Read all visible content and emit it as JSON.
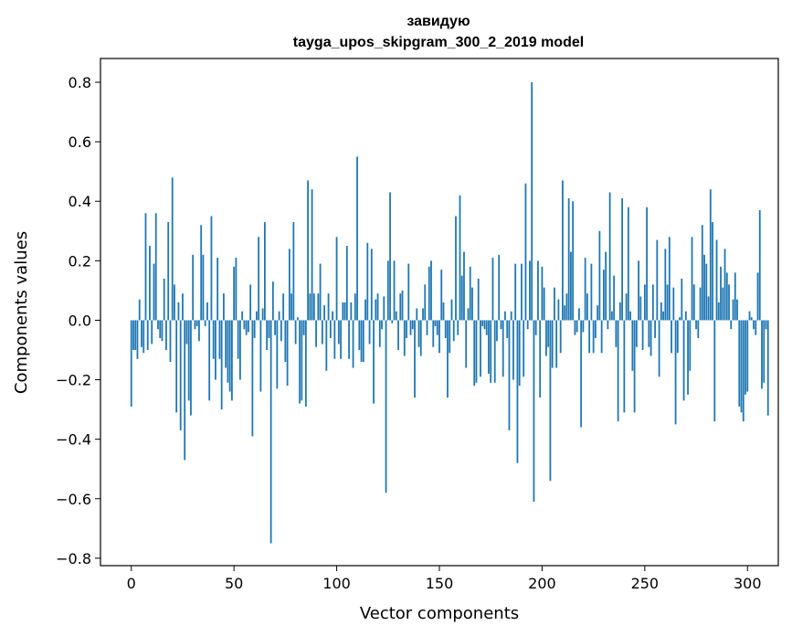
{
  "chart_data": {
    "type": "bar",
    "title_lines": [
      "завидую",
      "tayga_upos_skipgram_300_2_2019 model"
    ],
    "xlabel": "Vector components",
    "ylabel": "Components values",
    "xlim": [
      -15,
      315
    ],
    "ylim": [
      -0.825,
      0.88
    ],
    "xticks": [
      0,
      50,
      100,
      150,
      200,
      250,
      300
    ],
    "xtick_labels": [
      "0",
      "50",
      "100",
      "150",
      "200",
      "250",
      "300"
    ],
    "yticks": [
      -0.8,
      -0.6,
      -0.4,
      -0.2,
      0.0,
      0.2,
      0.4,
      0.6,
      0.8
    ],
    "ytick_labels": [
      "−0.8",
      "−0.6",
      "−0.4",
      "−0.2",
      "0.0",
      "0.2",
      "0.4",
      "0.6",
      "0.8"
    ],
    "grid": false,
    "bar_color": "#1f77b4",
    "values": [
      -0.29,
      -0.1,
      -0.1,
      -0.13,
      0.07,
      -0.09,
      -0.11,
      0.36,
      -0.1,
      0.25,
      -0.08,
      0.19,
      0.36,
      -0.03,
      -0.06,
      -0.07,
      0.14,
      -0.1,
      0.33,
      -0.14,
      0.48,
      0.12,
      -0.31,
      0.06,
      -0.37,
      0.09,
      -0.47,
      -0.08,
      -0.27,
      -0.32,
      0.22,
      -0.03,
      -0.02,
      -0.07,
      0.32,
      0.22,
      -0.02,
      0.06,
      -0.27,
      0.35,
      -0.13,
      -0.2,
      0.21,
      -0.13,
      -0.3,
      0.09,
      -0.16,
      -0.21,
      -0.24,
      -0.27,
      0.18,
      0.21,
      -0.13,
      -0.2,
      0.03,
      -0.03,
      -0.05,
      -0.04,
      0.12,
      -0.39,
      -0.06,
      0.03,
      0.28,
      -0.24,
      0.04,
      0.33,
      -0.1,
      -0.06,
      -0.75,
      0.13,
      -0.05,
      -0.23,
      0.03,
      -0.07,
      0.09,
      -0.14,
      -0.22,
      0.24,
      0.09,
      0.33,
      -0.08,
      0.01,
      -0.28,
      -0.27,
      -0.05,
      -0.29,
      0.47,
      0.09,
      0.44,
      0.09,
      -0.09,
      0.09,
      0.19,
      -0.08,
      0.05,
      -0.17,
      0.09,
      -0.06,
      0.03,
      -0.13,
      0.28,
      -0.08,
      -0.13,
      0.06,
      0.06,
      0.25,
      -0.13,
      0.06,
      -0.16,
      0.09,
      0.55,
      -0.1,
      -0.14,
      -0.14,
      0.07,
      0.26,
      -0.08,
      0.24,
      -0.28,
      0.07,
      0.09,
      -0.09,
      -0.03,
      0.08,
      -0.58,
      0.2,
      0.43,
      -0.01,
      0.2,
      0.03,
      -0.1,
      0.09,
      0.1,
      -0.12,
      -0.06,
      0.19,
      -0.05,
      -0.03,
      -0.26,
      0.04,
      -0.09,
      -0.12,
      0.04,
      0.12,
      -0.05,
      0.18,
      0.2,
      -0.09,
      -0.02,
      -0.05,
      -0.11,
      0.17,
      0.06,
      -0.06,
      -0.26,
      -0.11,
      0.07,
      -0.07,
      0.35,
      -0.05,
      0.42,
      0.15,
      0.23,
      -0.16,
      0.04,
      0.18,
      0.11,
      -0.22,
      -0.21,
      0.14,
      -0.19,
      -0.02,
      -0.03,
      -0.05,
      -0.18,
      -0.21,
      0.21,
      -0.21,
      -0.07,
      0.22,
      -0.03,
      -0.19,
      0.03,
      -0.06,
      -0.37,
      0.03,
      -0.2,
      0.19,
      -0.48,
      -0.22,
      0.19,
      -0.19,
      0.46,
      -0.03,
      0.2,
      0.8,
      -0.61,
      -0.05,
      0.2,
      -0.26,
      0.18,
      0.11,
      -0.12,
      -0.09,
      -0.54,
      -0.16,
      0.11,
      -0.16,
      0.07,
      -0.11,
      0.47,
      0.05,
      0.09,
      0.41,
      0.23,
      0.4,
      -0.05,
      -0.04,
      0.04,
      -0.36,
      -0.04,
      0.21,
      0.09,
      -0.11,
      0.19,
      -0.11,
      -0.06,
      0.05,
      0.3,
      -0.11,
      0.17,
      0.23,
      -0.03,
      0.43,
      0.03,
      0.15,
      -0.09,
      -0.34,
      0.06,
      0.41,
      -0.31,
      0.09,
      0.38,
      0.03,
      -0.17,
      -0.31,
      -0.09,
      0.2,
      0.08,
      -0.1,
      0.12,
      0.38,
      -0.09,
      -0.12,
      0.12,
      -0.06,
      0.27,
      -0.19,
      0.06,
      0.03,
      0.24,
      0.12,
      0.28,
      -0.11,
      0.11,
      -0.35,
      -0.11,
      0.01,
      0.14,
      -0.27,
      0.03,
      -0.25,
      -0.17,
      0.28,
      0.12,
      -0.03,
      -0.06,
      0.11,
      0.32,
      0.22,
      0.19,
      0.08,
      0.44,
      0.33,
      -0.34,
      0.27,
      0.06,
      0.18,
      0.11,
      0.24,
      0.16,
      0.12,
      -0.03,
      0.07,
      0.16,
      0.07,
      -0.29,
      -0.31,
      -0.34,
      -0.25,
      -0.24,
      0.03,
      0.01,
      -0.03,
      -0.05,
      0.16,
      0.37,
      -0.23,
      -0.21,
      -0.03,
      -0.32
    ]
  }
}
